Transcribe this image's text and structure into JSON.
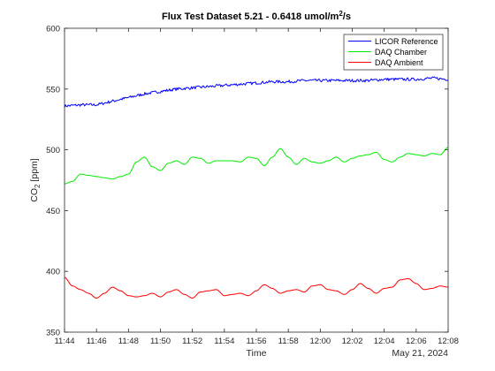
{
  "chart_data": {
    "type": "line",
    "title_main": "Flux Test Dataset 5.21 - 0.6418 umol/m",
    "title_sup": "2",
    "title_tail": "/s",
    "xlabel": "Time",
    "date_label": "May 21, 2024",
    "ylabel_main": "CO",
    "ylabel_sub": "2",
    "ylabel_tail": " [ppm]",
    "xlim": [
      "11:44",
      "12:08"
    ],
    "ylim": [
      350,
      600
    ],
    "x_ticks": [
      "11:44",
      "11:46",
      "11:48",
      "11:50",
      "11:52",
      "11:54",
      "11:56",
      "11:58",
      "12:00",
      "12:02",
      "12:04",
      "12:06",
      "12:08"
    ],
    "y_ticks": [
      350,
      400,
      450,
      500,
      550,
      600
    ],
    "legend_position": "top-right",
    "series": [
      {
        "name": "LICOR Reference",
        "color": "#0000ff",
        "noise": true,
        "x": [
          "11:44",
          "11:45",
          "11:46",
          "11:47",
          "11:48",
          "11:49",
          "11:50",
          "11:51",
          "11:52",
          "11:53",
          "11:54",
          "11:55",
          "11:56",
          "11:57",
          "11:58",
          "11:59",
          "12:00",
          "12:01",
          "12:02",
          "12:03",
          "12:04",
          "12:05",
          "12:06",
          "12:07",
          "12:08"
        ],
        "y": [
          536,
          537,
          537,
          540,
          543,
          546,
          548,
          550,
          551,
          552,
          553,
          554,
          555,
          556,
          556,
          557,
          557,
          557,
          557,
          557,
          558,
          558,
          558,
          559,
          558
        ]
      },
      {
        "name": "DAQ Chamber",
        "color": "#00ee00",
        "noise": false,
        "x": [
          "11:44",
          "11:44:30",
          "11:45",
          "11:45:30",
          "11:46",
          "11:46:30",
          "11:47",
          "11:47:30",
          "11:48",
          "11:48:30",
          "11:49",
          "11:49:30",
          "11:50",
          "11:50:30",
          "11:51",
          "11:51:30",
          "11:52",
          "11:52:30",
          "11:53",
          "11:53:30",
          "11:54",
          "11:54:30",
          "11:55",
          "11:55:30",
          "11:56",
          "11:56:30",
          "11:57",
          "11:57:30",
          "11:58",
          "11:58:30",
          "11:59",
          "11:59:30",
          "12:00",
          "12:00:30",
          "12:01",
          "12:01:30",
          "12:02",
          "12:02:30",
          "12:03",
          "12:03:30",
          "12:04",
          "12:04:30",
          "12:05",
          "12:05:30",
          "12:06",
          "12:06:30",
          "12:07",
          "12:07:30",
          "12:08"
        ],
        "y": [
          472,
          474,
          480,
          479,
          478,
          477,
          476,
          478,
          480,
          490,
          494,
          486,
          483,
          489,
          491,
          488,
          494,
          493,
          489,
          491,
          491,
          491,
          490,
          494,
          493,
          487,
          494,
          501,
          494,
          488,
          493,
          490,
          489,
          491,
          494,
          490,
          493,
          495,
          496,
          498,
          492,
          490,
          494,
          497,
          496,
          495,
          497,
          496,
          502
        ]
      },
      {
        "name": "DAQ Ambient",
        "color": "#ff0000",
        "noise": false,
        "x": [
          "11:44",
          "11:44:30",
          "11:45",
          "11:45:30",
          "11:46",
          "11:46:30",
          "11:47",
          "11:47:30",
          "11:48",
          "11:48:30",
          "11:49",
          "11:49:30",
          "11:50",
          "11:50:30",
          "11:51",
          "11:51:30",
          "11:52",
          "11:52:30",
          "11:53",
          "11:53:30",
          "11:54",
          "11:54:30",
          "11:55",
          "11:55:30",
          "11:56",
          "11:56:30",
          "11:57",
          "11:57:30",
          "11:58",
          "11:58:30",
          "11:59",
          "11:59:30",
          "12:00",
          "12:00:30",
          "12:01",
          "12:01:30",
          "12:02",
          "12:02:30",
          "12:03",
          "12:03:30",
          "12:04",
          "12:04:30",
          "12:05",
          "12:05:30",
          "12:06",
          "12:06:30",
          "12:07",
          "12:07:30",
          "12:08"
        ],
        "y": [
          395,
          388,
          385,
          382,
          378,
          382,
          387,
          384,
          380,
          379,
          380,
          382,
          379,
          383,
          385,
          381,
          378,
          383,
          384,
          385,
          380,
          381,
          382,
          380,
          384,
          389,
          386,
          382,
          384,
          385,
          383,
          388,
          389,
          385,
          384,
          381,
          385,
          390,
          386,
          382,
          386,
          387,
          393,
          394,
          390,
          385,
          386,
          388,
          387
        ]
      }
    ]
  }
}
